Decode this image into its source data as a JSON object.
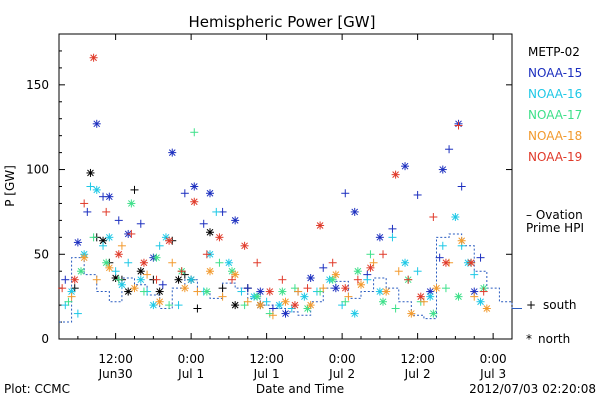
{
  "chart_data": {
    "type": "scatter",
    "title": "Hemispheric Power [GW]",
    "ylabel": "P [GW]",
    "xlabel": "Date and Time",
    "ylim": [
      0,
      180
    ],
    "y_ticks": [
      "0",
      "50",
      "100",
      "150"
    ],
    "x_ticks": [
      {
        "top": "12:00",
        "bottom": "Jun30"
      },
      {
        "top": "0:00",
        "bottom": "Jul 1"
      },
      {
        "top": "12:00",
        "bottom": "Jul 1"
      },
      {
        "top": "0:00",
        "bottom": "Jul 2"
      },
      {
        "top": "12:00",
        "bottom": "Jul 2"
      },
      {
        "top": "0:00",
        "bottom": "Jul 3"
      }
    ],
    "x_tick_hours": [
      12,
      24,
      36,
      48,
      60,
      72
    ],
    "xlim_hours": [
      3,
      75
    ],
    "legend": [
      {
        "name": "METP-02",
        "color": "#000000"
      },
      {
        "name": "NOAA-15",
        "color": "#1c2fbf"
      },
      {
        "name": "NOAA-16",
        "color": "#1ec8e6"
      },
      {
        "name": "NOAA-17",
        "color": "#3ee08a"
      },
      {
        "name": "NOAA-18",
        "color": "#f29a2e"
      },
      {
        "name": "NOAA-19",
        "color": "#e03a2a"
      }
    ],
    "ovation_label_1": "– Ovation",
    "ovation_label_2": "Prime HPI",
    "ovation_color": "#2a5cc0",
    "marker_south_symbol": "+",
    "marker_south_label": "south",
    "marker_north_symbol": "*",
    "marker_north_label": "north",
    "ovation": {
      "hours": [
        3,
        5,
        7,
        9,
        11,
        13,
        15,
        17,
        19,
        21,
        23,
        25,
        27,
        29,
        31,
        33,
        35,
        37,
        39,
        41,
        43,
        45,
        47,
        49,
        51,
        53,
        55,
        57,
        59,
        61,
        63,
        65,
        67,
        69,
        71,
        73,
        75
      ],
      "values": [
        10,
        48,
        38,
        28,
        22,
        36,
        32,
        26,
        18,
        30,
        35,
        28,
        24,
        33,
        30,
        24,
        20,
        18,
        16,
        14,
        22,
        30,
        34,
        24,
        28,
        36,
        30,
        22,
        14,
        12,
        60,
        62,
        55,
        40,
        30,
        22,
        18
      ]
    },
    "series": [
      {
        "name": "METP-02",
        "hours": [
          5.5,
          8,
          9,
          10,
          11,
          12,
          13,
          14,
          15,
          16,
          18,
          19,
          21,
          22,
          23,
          24,
          25,
          27,
          29,
          31,
          33,
          35
        ],
        "values": [
          30,
          98,
          60,
          58,
          45,
          36,
          35,
          28,
          88,
          40,
          35,
          28,
          58,
          35,
          38,
          35,
          18,
          63,
          30,
          20,
          30,
          20
        ]
      },
      {
        "name": "NOAA-15",
        "hours": [
          4,
          6,
          7.5,
          9,
          10,
          11,
          12.5,
          14,
          16,
          18,
          19.5,
          21,
          23,
          24.5,
          26,
          27,
          29,
          31,
          33,
          35,
          37,
          39,
          41,
          43,
          45,
          47,
          48.5,
          50,
          52,
          54,
          56,
          58,
          60,
          62,
          63.5,
          64,
          65,
          66.5,
          67,
          69,
          70
        ],
        "values": [
          35,
          57,
          75,
          127,
          84,
          84,
          70,
          62,
          68,
          48,
          32,
          110,
          86,
          90,
          68,
          86,
          75,
          70,
          30,
          28,
          18,
          15,
          28,
          36,
          42,
          30,
          86,
          75,
          38,
          60,
          65,
          102,
          85,
          28,
          48,
          100,
          112,
          127,
          90,
          28,
          48
        ]
      },
      {
        "name": "NOAA-16",
        "hours": [
          4,
          5,
          6,
          7,
          8,
          9,
          10,
          11,
          12,
          13,
          14,
          16,
          17,
          18,
          19,
          20,
          22,
          24,
          26,
          27,
          28,
          30,
          32,
          34,
          36,
          38,
          40,
          42,
          44,
          46,
          48,
          50,
          52,
          54,
          56,
          58,
          60,
          62,
          64,
          66,
          67,
          68,
          69,
          70
        ],
        "values": [
          20,
          28,
          15,
          50,
          90,
          88,
          55,
          60,
          40,
          32,
          45,
          35,
          28,
          20,
          55,
          60,
          20,
          35,
          28,
          50,
          75,
          45,
          28,
          25,
          22,
          20,
          18,
          25,
          28,
          35,
          20,
          15,
          35,
          28,
          60,
          45,
          40,
          25,
          55,
          72,
          55,
          45,
          38,
          22
        ]
      },
      {
        "name": "NOAA-17",
        "hours": [
          4.5,
          6.5,
          8.5,
          10.5,
          12.5,
          14.5,
          16.5,
          18.5,
          20.5,
          22.5,
          24.5,
          26.5,
          28.5,
          30.5,
          32.5,
          34.5,
          36.5,
          38.5,
          40.5,
          42.5,
          44.5,
          46.5,
          48.5,
          50.5,
          52.5,
          54.5,
          56.5,
          58.5,
          60.5,
          62.5,
          64.5,
          66.5,
          68.5,
          70.5
        ],
        "values": [
          22,
          40,
          60,
          45,
          35,
          80,
          28,
          48,
          20,
          40,
          122,
          28,
          45,
          40,
          20,
          25,
          15,
          28,
          30,
          18,
          28,
          35,
          22,
          40,
          50,
          22,
          18,
          35,
          22,
          15,
          30,
          25,
          45,
          30
        ]
      },
      {
        "name": "NOAA-18",
        "hours": [
          5,
          7,
          9,
          11,
          13,
          15,
          17,
          19,
          21,
          23,
          25,
          27,
          29,
          31,
          33,
          35,
          37,
          39,
          41,
          43,
          45,
          47,
          49,
          51,
          53,
          55,
          57,
          59,
          61,
          63,
          65,
          67,
          69,
          71
        ],
        "values": [
          25,
          48,
          35,
          42,
          55,
          30,
          38,
          22,
          45,
          30,
          28,
          40,
          25,
          38,
          22,
          20,
          14,
          22,
          28,
          20,
          30,
          38,
          25,
          32,
          45,
          28,
          40,
          15,
          22,
          30,
          45,
          58,
          25,
          18
        ]
      },
      {
        "name": "NOAA-19",
        "hours": [
          3.5,
          5.5,
          7,
          8.5,
          10.5,
          12.5,
          14.5,
          16.5,
          18.5,
          20.5,
          22.5,
          24.5,
          26.5,
          28.5,
          30.5,
          32.5,
          34.5,
          36.5,
          38.5,
          40.5,
          42.5,
          44.5,
          46.5,
          48.5,
          50.5,
          52.5,
          54.5,
          56.5,
          58.5,
          60.5,
          62.5,
          64.5,
          66.5,
          68.5,
          70.5
        ],
        "values": [
          30,
          35,
          80,
          166,
          75,
          50,
          62,
          45,
          35,
          58,
          40,
          81,
          50,
          60,
          35,
          55,
          45,
          28,
          35,
          20,
          30,
          67,
          45,
          30,
          35,
          42,
          50,
          97,
          35,
          25,
          72,
          45,
          126,
          45,
          28
        ]
      }
    ]
  },
  "footer_left": "Plot: CCMC",
  "footer_right": "2012/07/03 02:20:08"
}
